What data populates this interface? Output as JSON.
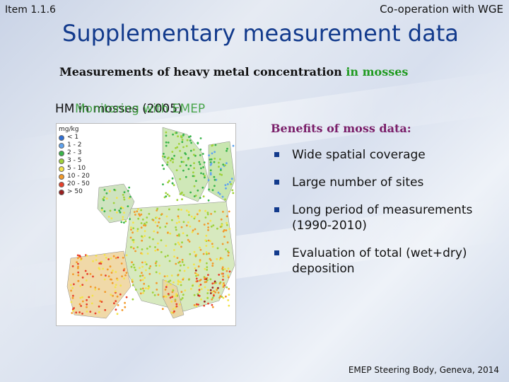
{
  "header": {
    "item": "Item 1.1.6",
    "cooperation": "Co-operation with WGE"
  },
  "title": "Supplementary measurement data",
  "subtitle": {
    "prefix": "Measurements of heavy metal concentration",
    "highlight": "in mosses"
  },
  "map": {
    "label_prefix": "HM in mosses (2005)",
    "label_overlay": "Monitoring with EMEP",
    "unit": "mg/kg",
    "legend": [
      {
        "label": "< 1",
        "color": "#2e6fd6"
      },
      {
        "label": "1 - 2",
        "color": "#5fa3f0"
      },
      {
        "label": "2 - 3",
        "color": "#39b54a"
      },
      {
        "label": "3 - 5",
        "color": "#9fd23a"
      },
      {
        "label": "5 - 10",
        "color": "#f3e34a"
      },
      {
        "label": "10 - 20",
        "color": "#f39a2b"
      },
      {
        "label": "20 - 50",
        "color": "#e8402a"
      },
      {
        "label": "> 50",
        "color": "#9b1f1f"
      }
    ]
  },
  "benefits": {
    "heading": "Benefits of moss data:",
    "items": [
      "Wide spatial coverage",
      "Large number of sites",
      "Long period of measurements (1990-2010)",
      "Evaluation of total (wet+dry) deposition"
    ]
  },
  "footer": "EMEP Steering Body, Geneva, 2014"
}
